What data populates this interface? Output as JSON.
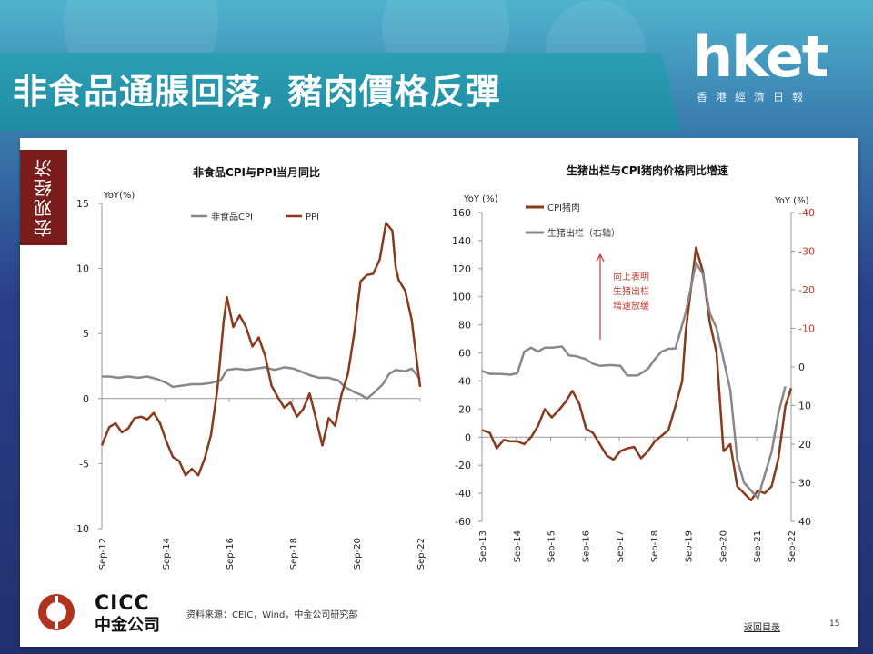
{
  "banner": {
    "title": "非食品通脹回落, 豬肉價格反彈"
  },
  "logo": {
    "name": "hket",
    "subtitle": "香港經濟日報"
  },
  "side_tag": "宏观经济",
  "footer": {
    "source": "资料来源：CEIC，Wind，中金公司研究部",
    "back_link": "返回目录",
    "page_number": "15",
    "company_en": "CICC",
    "company_cn": "中金公司"
  },
  "colors": {
    "gray_series": "#888888",
    "brown_series": "#8a3a1a",
    "red_axis": "#c0392b",
    "banner": "#1e8ca3",
    "tag": "#7a1c1c"
  },
  "chart_data": [
    {
      "type": "line",
      "title": "非食品CPI与PPI当月同比",
      "ylabel": "YoY(%)",
      "ylim": [
        -10,
        15
      ],
      "yticks": [
        "15",
        "10",
        "5",
        "0",
        "-5",
        "-10"
      ],
      "xticks": [
        "Sep-12",
        "Sep-14",
        "Sep-16",
        "Sep-18",
        "Sep-20",
        "Sep-22"
      ],
      "xrange": [
        2012.67,
        2022.67
      ],
      "legend": "top",
      "series": [
        {
          "name": "非食品CPI",
          "color": "#888888",
          "x": [
            2012.67,
            2012.9,
            2013.2,
            2013.5,
            2013.8,
            2014.1,
            2014.4,
            2014.7,
            2014.9,
            2015.2,
            2015.5,
            2015.8,
            2016.1,
            2016.4,
            2016.6,
            2016.9,
            2017.2,
            2017.5,
            2017.8,
            2018.1,
            2018.4,
            2018.7,
            2018.9,
            2019.2,
            2019.5,
            2019.8,
            2020.1,
            2020.3,
            2020.6,
            2020.8,
            2021.0,
            2021.2,
            2021.5,
            2021.7,
            2021.9,
            2022.2,
            2022.4,
            2022.67
          ],
          "y": [
            1.7,
            1.7,
            1.6,
            1.7,
            1.6,
            1.7,
            1.5,
            1.2,
            0.9,
            1.0,
            1.1,
            1.1,
            1.2,
            1.4,
            2.2,
            2.3,
            2.2,
            2.3,
            2.4,
            2.2,
            2.4,
            2.3,
            2.1,
            1.8,
            1.6,
            1.6,
            1.4,
            0.9,
            0.5,
            0.3,
            0.0,
            0.4,
            1.1,
            1.9,
            2.2,
            2.1,
            2.3,
            1.5
          ]
        },
        {
          "name": "PPI",
          "color": "#8a3a1a",
          "x": [
            2012.67,
            2012.9,
            2013.1,
            2013.3,
            2013.5,
            2013.7,
            2013.9,
            2014.1,
            2014.3,
            2014.5,
            2014.7,
            2014.9,
            2015.1,
            2015.3,
            2015.5,
            2015.7,
            2015.9,
            2016.1,
            2016.3,
            2016.5,
            2016.6,
            2016.8,
            2017.0,
            2017.2,
            2017.4,
            2017.6,
            2017.8,
            2018.0,
            2018.2,
            2018.4,
            2018.6,
            2018.8,
            2019.0,
            2019.2,
            2019.4,
            2019.6,
            2019.8,
            2020.0,
            2020.2,
            2020.4,
            2020.6,
            2020.8,
            2021.0,
            2021.2,
            2021.4,
            2021.6,
            2021.8,
            2021.9,
            2022.0,
            2022.2,
            2022.4,
            2022.5,
            2022.67
          ],
          "y": [
            -3.6,
            -2.2,
            -1.9,
            -2.6,
            -2.3,
            -1.5,
            -1.4,
            -1.6,
            -1.1,
            -1.9,
            -3.3,
            -4.5,
            -4.8,
            -5.9,
            -5.4,
            -5.9,
            -4.6,
            -2.8,
            0.7,
            6.0,
            7.8,
            5.5,
            6.4,
            5.5,
            4.0,
            4.7,
            3.3,
            1.0,
            0.1,
            -0.7,
            -0.3,
            -1.4,
            -0.8,
            0.4,
            -1.6,
            -3.6,
            -1.5,
            -2.1,
            0.3,
            1.9,
            5.0,
            9.0,
            9.5,
            9.6,
            10.7,
            13.5,
            12.9,
            10.1,
            9.1,
            8.3,
            6.1,
            4.2,
            0.9
          ]
        }
      ]
    },
    {
      "type": "line",
      "title": "生猪出栏与CPI猪肉价格同比增速",
      "ylabel": "YoY  (%)",
      "ylabel_right": "YoY  (%)",
      "ylim": [
        -60,
        160
      ],
      "ylim_right": [
        40,
        -40
      ],
      "yticks": [
        "160",
        "140",
        "120",
        "100",
        "80",
        "60",
        "40",
        "20",
        "0",
        "-20",
        "-40",
        "-60"
      ],
      "yticks_right": [
        "-40",
        "-30",
        "-20",
        "-10",
        "0",
        "10",
        "20",
        "30",
        "40"
      ],
      "xticks": [
        "Sep-13",
        "Sep-14",
        "Sep-15",
        "Sep-16",
        "Sep-17",
        "Sep-18",
        "Sep-19",
        "Sep-20",
        "Sep-21",
        "Sep-22"
      ],
      "xrange": [
        2013.67,
        2022.67
      ],
      "legend": "top-left",
      "annotation": [
        "向上表明",
        "生猪出栏",
        "增速放缓"
      ],
      "series": [
        {
          "name": "CPI猪肉",
          "color": "#8a3a1a",
          "axis": "left",
          "x": [
            2013.67,
            2013.9,
            2014.1,
            2014.3,
            2014.5,
            2014.7,
            2014.9,
            2015.1,
            2015.3,
            2015.5,
            2015.7,
            2015.9,
            2016.1,
            2016.3,
            2016.5,
            2016.7,
            2016.9,
            2017.1,
            2017.3,
            2017.5,
            2017.7,
            2017.9,
            2018.1,
            2018.3,
            2018.5,
            2018.7,
            2018.9,
            2019.1,
            2019.3,
            2019.5,
            2019.6,
            2019.75,
            2019.9,
            2020.1,
            2020.3,
            2020.5,
            2020.7,
            2020.9,
            2021.1,
            2021.3,
            2021.5,
            2021.7,
            2021.9,
            2022.1,
            2022.3,
            2022.5,
            2022.67
          ],
          "y": [
            5,
            3,
            -8,
            -2,
            -3,
            -3,
            -5,
            0,
            8,
            20,
            14,
            19,
            25,
            33,
            24,
            6,
            3,
            -5,
            -13,
            -16,
            -10,
            -8,
            -7,
            -15,
            -10,
            -3,
            1,
            5,
            22,
            40,
            75,
            105,
            135,
            118,
            82,
            60,
            -10,
            -5,
            -35,
            -40,
            -45,
            -38,
            -40,
            -35,
            -15,
            22,
            35
          ]
        },
        {
          "name": "生猪出栏（右轴）",
          "color": "#888888",
          "axis": "right",
          "x": [
            2013.67,
            2013.9,
            2014.2,
            2014.5,
            2014.7,
            2014.9,
            2015.1,
            2015.3,
            2015.5,
            2015.7,
            2016.0,
            2016.2,
            2016.4,
            2016.7,
            2016.9,
            2017.1,
            2017.4,
            2017.7,
            2017.9,
            2018.2,
            2018.5,
            2018.7,
            2018.9,
            2019.1,
            2019.3,
            2019.6,
            2019.9,
            2020.1,
            2020.3,
            2020.5,
            2020.7,
            2020.9,
            2021.1,
            2021.3,
            2021.5,
            2021.7,
            2021.9,
            2022.1,
            2022.3,
            2022.5
          ],
          "y": [
            1,
            1.8,
            1.8,
            2,
            1.6,
            -4,
            -5,
            -4,
            -5,
            -5,
            -5.3,
            -3,
            -2.8,
            -2,
            -0.8,
            -0.3,
            -0.5,
            -0.3,
            2.2,
            2.2,
            0.5,
            -2,
            -4,
            -4.7,
            -4.8,
            -14,
            -27,
            -24,
            -14,
            -10,
            -2,
            6,
            24,
            30,
            32,
            34,
            28,
            22,
            12,
            5
          ]
        }
      ]
    }
  ]
}
